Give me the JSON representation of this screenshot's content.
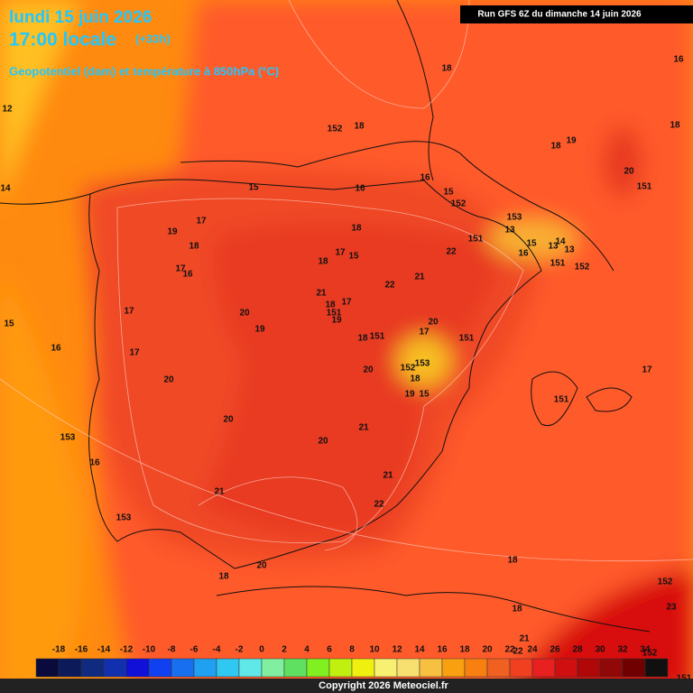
{
  "header": {
    "date": "lundi 15 juin 2026",
    "time": "17:00 locale",
    "lead": "(+33h)",
    "field": "Geopotentiel (dam) et température à 850hPa (°C)",
    "run": "Run GFS 6Z du dimanche 14 juin 2026"
  },
  "contour_labels": [
    18,
    16,
    12,
    152,
    18,
    19,
    18,
    18,
    20,
    151,
    14,
    15,
    16,
    16,
    15,
    152,
    17,
    19,
    18,
    18,
    153,
    13,
    151,
    22,
    15,
    14,
    16,
    13,
    13,
    151,
    152,
    17,
    15,
    18,
    17,
    16,
    21,
    22,
    21,
    17,
    18,
    151,
    19,
    17,
    20,
    19,
    20,
    17,
    18,
    151,
    151,
    15,
    16,
    17,
    153,
    152,
    18,
    19,
    15,
    20,
    17,
    20,
    151,
    20,
    21,
    20,
    153,
    16,
    21,
    21,
    22,
    153,
    20,
    18,
    18,
    152,
    18,
    21,
    23,
    22,
    152,
    151,
    151
  ],
  "colorbar": {
    "ticks": [
      -18,
      -16,
      -14,
      -12,
      -10,
      -8,
      -6,
      -4,
      -2,
      0,
      2,
      4,
      6,
      8,
      10,
      12,
      14,
      16,
      18,
      20,
      22,
      24,
      26,
      28,
      30,
      32,
      34
    ],
    "colors": [
      "#0a0a3c",
      "#0c1a5a",
      "#102a80",
      "#1030b0",
      "#1010d8",
      "#1040f0",
      "#1870f0",
      "#20a0f0",
      "#30c8f0",
      "#60e8e8",
      "#80f0a0",
      "#60e060",
      "#80f020",
      "#c0f010",
      "#f0f010",
      "#f8f070",
      "#f8e070",
      "#f8c040",
      "#f8a010",
      "#f88010",
      "#f06020",
      "#f04020",
      "#e82020",
      "#d01010",
      "#b00808",
      "#900808",
      "#700000",
      "#101010"
    ]
  },
  "copyright": "Copyright 2026 Meteociel.fr"
}
